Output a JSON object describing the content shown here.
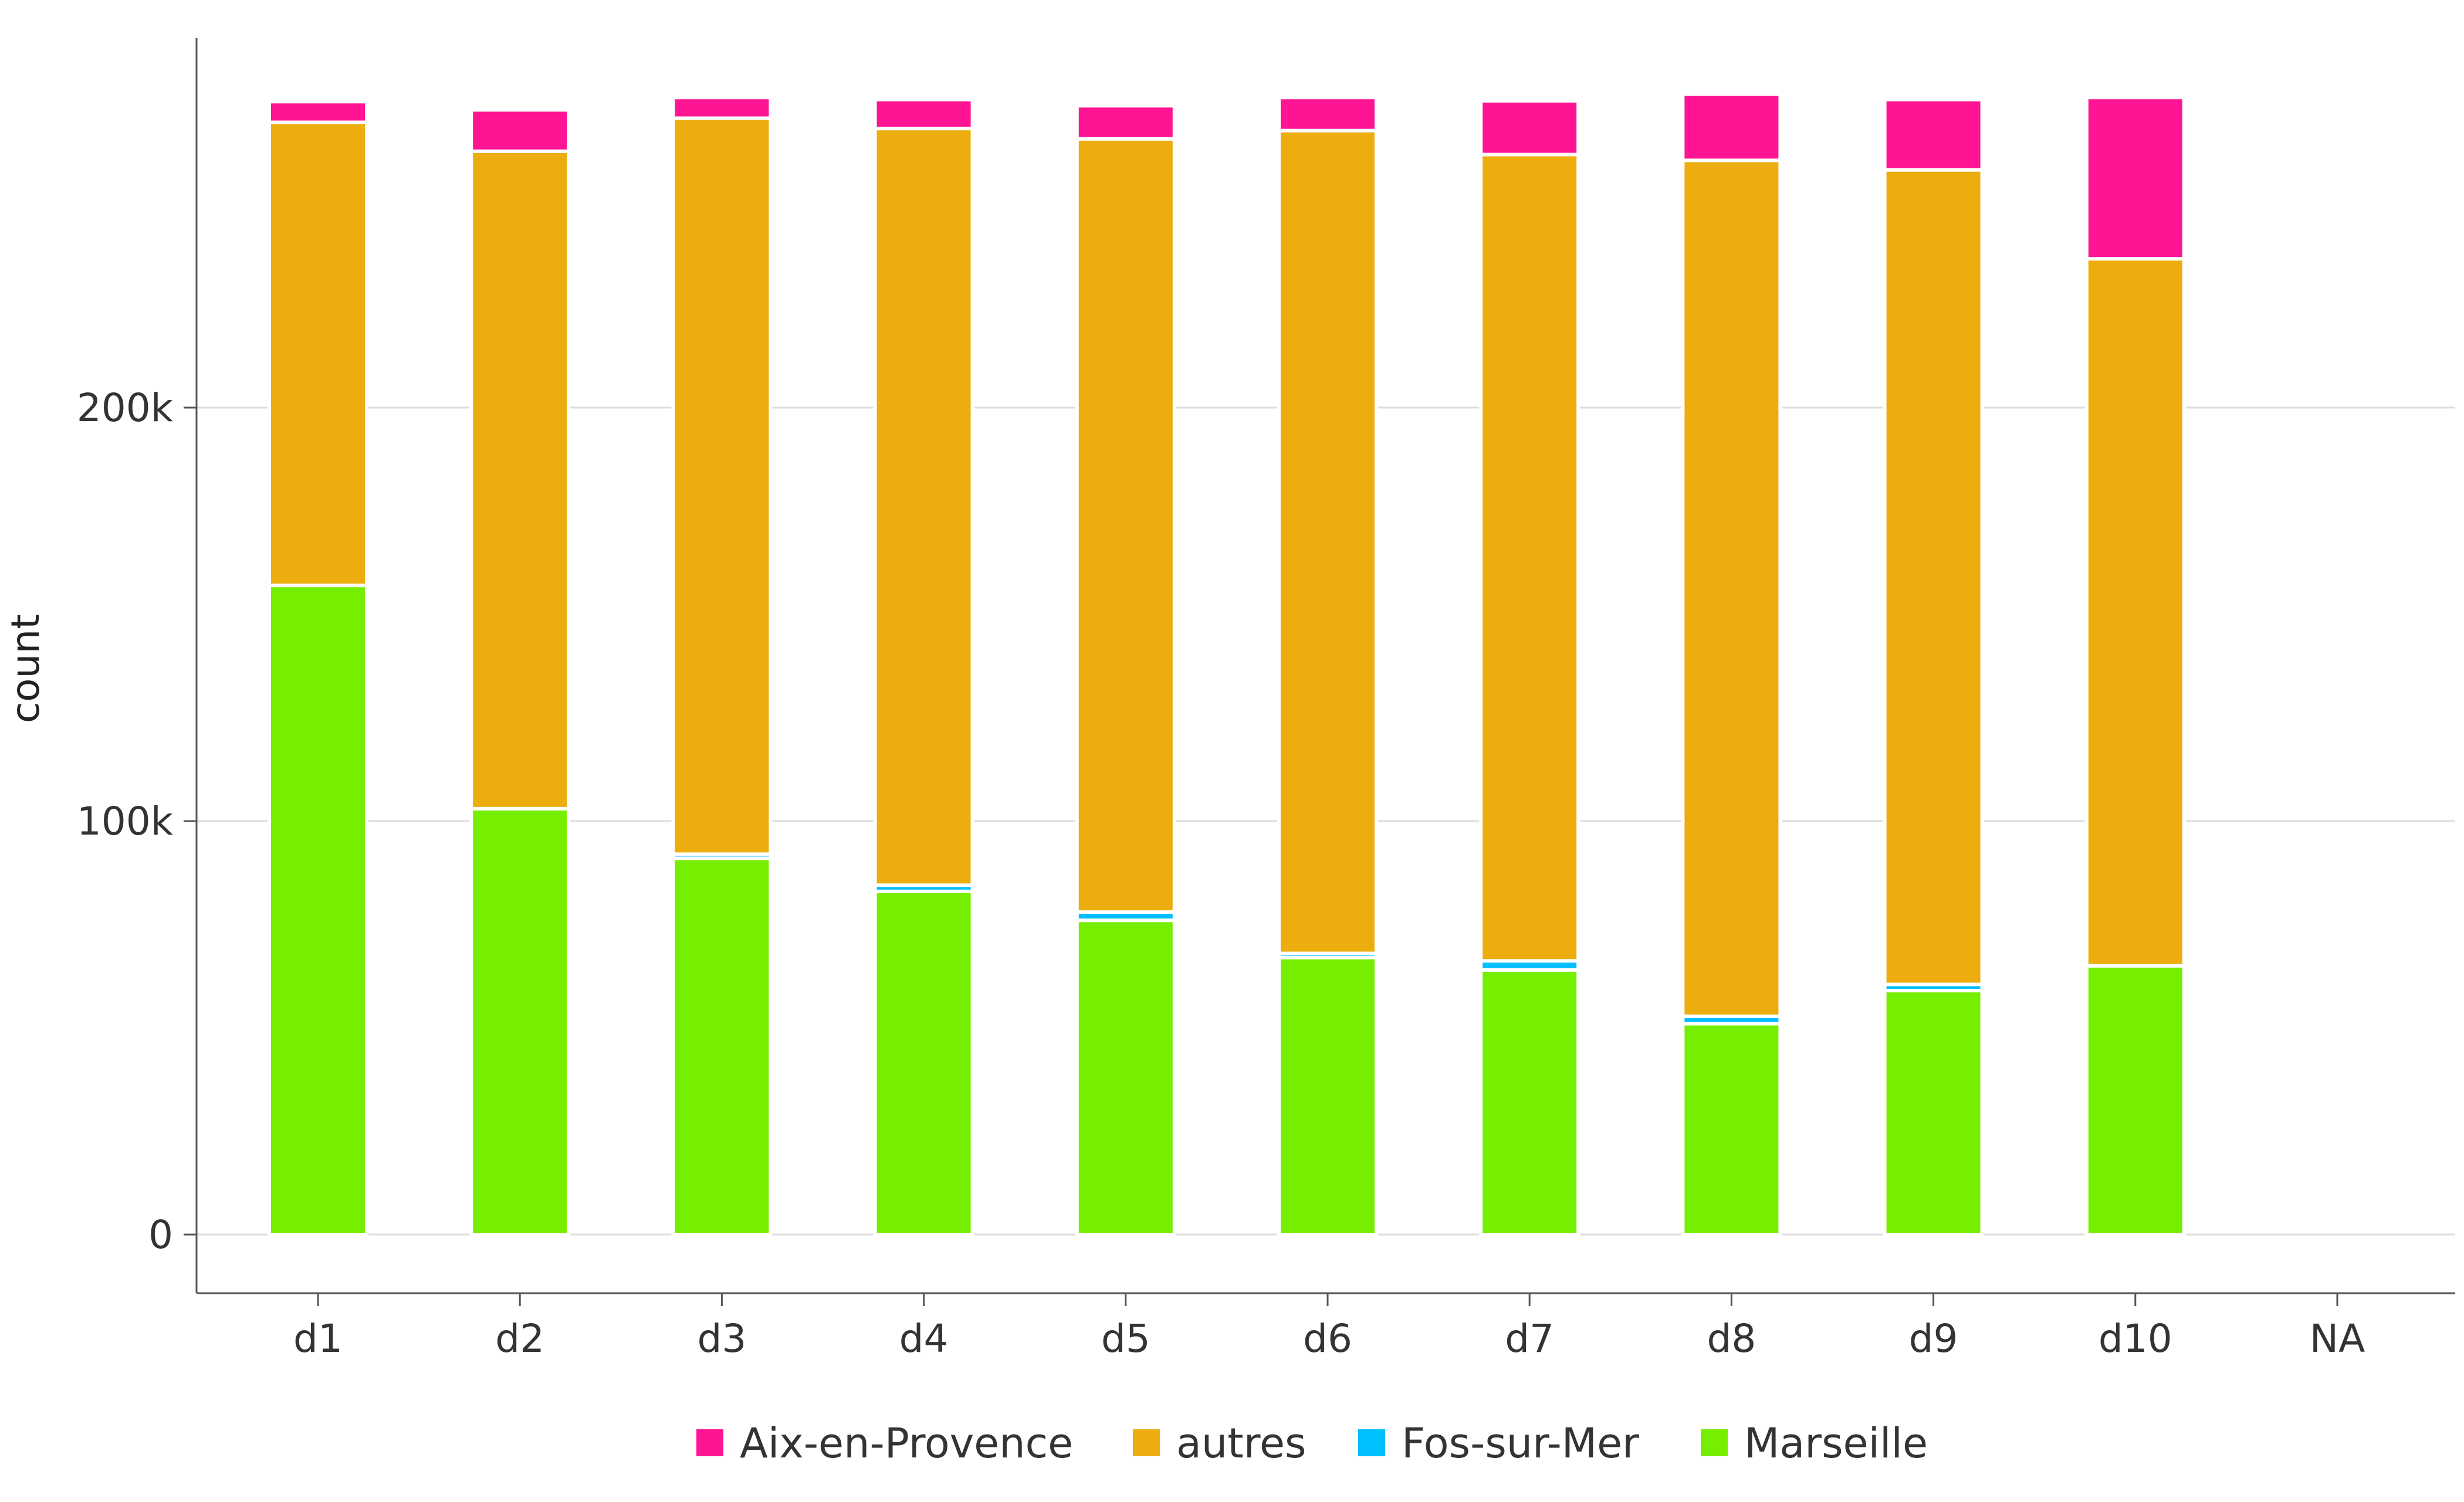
{
  "chart_data": {
    "type": "bar",
    "stacked": true,
    "title": "",
    "xlabel": "",
    "ylabel": "count",
    "ylim": [
      -14000,
      290000
    ],
    "yticks": [
      {
        "value": 0,
        "label": "0"
      },
      {
        "value": 100000,
        "label": "100k"
      },
      {
        "value": 200000,
        "label": "200k"
      }
    ],
    "grid": true,
    "legend_position": "bottom",
    "categories": [
      "d1",
      "d2",
      "d3",
      "d4",
      "d5",
      "d6",
      "d7",
      "d8",
      "d9",
      "d10",
      "NA"
    ],
    "series": [
      {
        "name": "Marseille",
        "color": "#76EE00",
        "values": [
          157000,
          103000,
          91000,
          83000,
          76000,
          67000,
          64000,
          51000,
          59000,
          65000,
          0
        ]
      },
      {
        "name": "Fos-sur-Mer",
        "color": "#00BFFF",
        "values": [
          0,
          0,
          1000,
          1500,
          2000,
          1000,
          2200,
          1800,
          1500,
          0,
          0
        ]
      },
      {
        "name": "autres",
        "color": "#EDAD0E",
        "values": [
          112000,
          159000,
          178000,
          183000,
          187000,
          199000,
          195000,
          207000,
          197000,
          171000,
          0
        ]
      },
      {
        "name": "Aix-en-Provence",
        "color": "#FF1493",
        "values": [
          5000,
          10000,
          5000,
          7000,
          8000,
          8000,
          13000,
          16000,
          17000,
          39000,
          0
        ]
      }
    ],
    "legend_order": [
      "Aix-en-Provence",
      "autres",
      "Fos-sur-Mer",
      "Marseille"
    ]
  }
}
